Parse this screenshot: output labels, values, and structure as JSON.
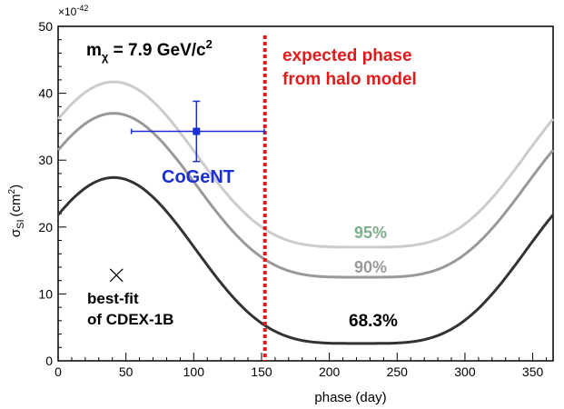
{
  "chart_data": {
    "type": "line",
    "xlabel": "phase (day)",
    "ylabel_main": "σ",
    "ylabel_sub": "SI",
    "ylabel_unit": "(cm",
    "ylabel_unit_sup": "2",
    "ylabel_close": ")",
    "y_exponent_label": "×10",
    "y_exponent_sup": "-42",
    "xlim": [
      0,
      365
    ],
    "ylim": [
      0,
      50
    ],
    "xticks": [
      0,
      50,
      100,
      150,
      200,
      250,
      300,
      350
    ],
    "yticks": [
      0,
      10,
      20,
      30,
      40,
      50
    ],
    "mass_label": {
      "prefix": "m",
      "sub": "χ",
      "text": " = 7.9 GeV/c",
      "sup": "2"
    },
    "curve_model": {
      "form": "sinusoid",
      "period_days": 365,
      "shape_exponent": 2
    },
    "series": [
      {
        "name": "95%",
        "color": "#cccccc",
        "max": 41.7,
        "min": 17.0,
        "peak_day": 41,
        "trough_day": 225
      },
      {
        "name": "90%",
        "color": "#999999",
        "max": 37.0,
        "min": 12.5,
        "peak_day": 41,
        "trough_day": 225
      },
      {
        "name": "68.3%",
        "color": "#333333",
        "max": 27.4,
        "min": 2.6,
        "peak_day": 41,
        "trough_day": 225
      }
    ],
    "series_label_colors": {
      "95%": "#7ab08a",
      "90%": "#999999",
      "68.3%": "#000000"
    },
    "expected_phase": {
      "x": 152.5,
      "label_line1": "expected phase",
      "label_line2": "from halo model",
      "color": "#e01b1b"
    },
    "cogent": {
      "label": "CoGeNT",
      "x": 102,
      "y": 34.3,
      "xerr": [
        48,
        50
      ],
      "yerr": [
        4.5,
        4.5
      ],
      "color": "#1a2ed1"
    },
    "cdex_bestfit": {
      "label_line1": "best-fit",
      "label_line2": "of CDEX-1B",
      "x": 43,
      "y": 12.8
    }
  }
}
